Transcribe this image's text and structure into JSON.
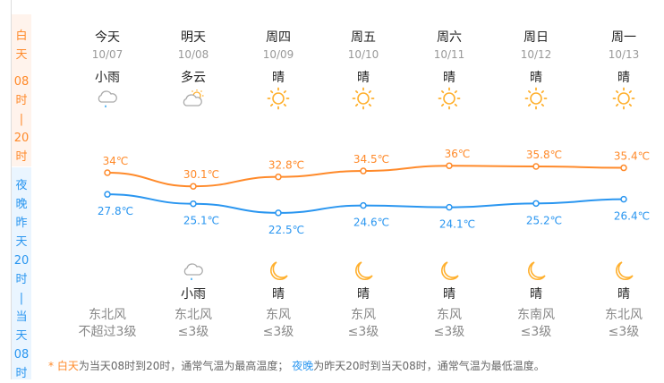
{
  "sidebar": {
    "day_chars": [
      "白",
      "天",
      "",
      "08",
      "时",
      "|",
      "20",
      "时"
    ],
    "night_chars": [
      "夜",
      "晚",
      "",
      "昨",
      "天",
      "20",
      "时",
      "|",
      "当",
      "天",
      "08",
      "时"
    ]
  },
  "days": [
    {
      "name": "今天",
      "date": "10/07",
      "day_weather": "小雨",
      "day_icon": "rain-cloud",
      "high": 34,
      "high_label": "34℃",
      "low": 27.8,
      "low_label": "27.8℃",
      "night_weather": "",
      "night_icon": "",
      "wind_dir": "东北风",
      "wind_level": "不超过3级"
    },
    {
      "name": "明天",
      "date": "10/08",
      "day_weather": "多云",
      "day_icon": "partly-cloudy",
      "high": 30.1,
      "high_label": "30.1℃",
      "low": 25.1,
      "low_label": "25.1℃",
      "night_weather": "小雨",
      "night_icon": "rain-cloud",
      "wind_dir": "东北风",
      "wind_level": "≤3级"
    },
    {
      "name": "周四",
      "date": "10/09",
      "day_weather": "晴",
      "day_icon": "sun",
      "high": 32.8,
      "high_label": "32.8℃",
      "low": 22.5,
      "low_label": "22.5℃",
      "night_weather": "晴",
      "night_icon": "moon",
      "wind_dir": "东风",
      "wind_level": "≤3级"
    },
    {
      "name": "周五",
      "date": "10/10",
      "day_weather": "晴",
      "day_icon": "sun",
      "high": 34.5,
      "high_label": "34.5℃",
      "low": 24.6,
      "low_label": "24.6℃",
      "night_weather": "晴",
      "night_icon": "moon",
      "wind_dir": "东风",
      "wind_level": "≤3级"
    },
    {
      "name": "周六",
      "date": "10/11",
      "day_weather": "晴",
      "day_icon": "sun",
      "high": 36,
      "high_label": "36℃",
      "low": 24.1,
      "low_label": "24.1℃",
      "night_weather": "晴",
      "night_icon": "moon",
      "wind_dir": "东风",
      "wind_level": "≤3级"
    },
    {
      "name": "周日",
      "date": "10/12",
      "day_weather": "晴",
      "day_icon": "sun",
      "high": 35.8,
      "high_label": "35.8℃",
      "low": 25.2,
      "low_label": "25.2℃",
      "night_weather": "晴",
      "night_icon": "moon",
      "wind_dir": "东南风",
      "wind_level": "≤3级"
    },
    {
      "name": "周一",
      "date": "10/13",
      "day_weather": "晴",
      "day_icon": "sun",
      "high": 35.4,
      "high_label": "35.4℃",
      "low": 26.4,
      "low_label": "26.4℃",
      "night_weather": "晴",
      "night_icon": "moon",
      "wind_dir": "东北风",
      "wind_level": "≤3级"
    }
  ],
  "colors": {
    "day": "#ff8a2a",
    "night": "#2a96f0",
    "sun": "#ffb02e",
    "rain": "#3aa8f0"
  },
  "footnote": {
    "star": "* ",
    "day_term": "白天",
    "day_text": "为当天08时到20时，通常气温为最高温度；",
    "night_term": "夜晚",
    "night_text": "为昨天20时到当天08时，通常气温为最低温度。"
  }
}
